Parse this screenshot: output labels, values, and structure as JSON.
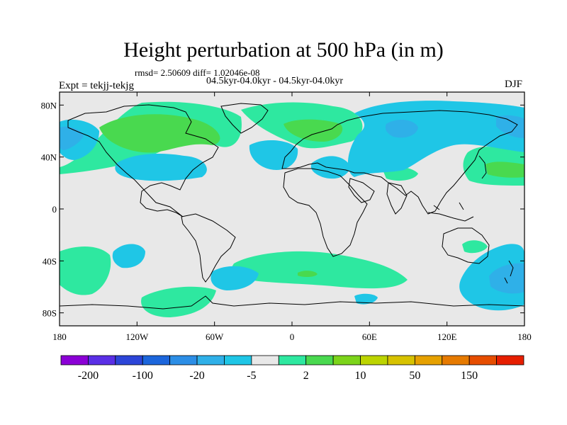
{
  "title": "Height perturbation at 500 hPa (in m)",
  "stats_line": "rmsd= 2.50609 diff= 1.02046e-08",
  "experiments_line": "04.5kyr-04.0kyr - 04.5kyr-04.0kyr",
  "expt_label": "Expt = tekjj-tekjg",
  "season_label": "DJF",
  "axes": {
    "x_ticks": [
      "180",
      "120W",
      "60W",
      "0",
      "60E",
      "120E",
      "180"
    ],
    "y_ticks": [
      "80N",
      "40N",
      "0",
      "40S",
      "80S"
    ]
  },
  "colorbar": {
    "colors": [
      "#8b00d6",
      "#5a2fe6",
      "#2c45d8",
      "#1c66dc",
      "#2c8ee6",
      "#2fb0e8",
      "#1fc6e6",
      "#e8e8e8",
      "#2ee8a0",
      "#49d94f",
      "#7cd41a",
      "#bcd400",
      "#d7c200",
      "#e6a100",
      "#e67a00",
      "#e64d00",
      "#e61e00"
    ],
    "labels": [
      "-200",
      "-100",
      "-20",
      "-5",
      "2",
      "10",
      "50",
      "150"
    ]
  },
  "colors": {
    "missing_land": "#e8e8e8",
    "neg_light": "#1fc6e6",
    "neg_mid": "#2fb0e8",
    "pos_light": "#2ee8a0",
    "pos_mid": "#49d94f"
  }
}
